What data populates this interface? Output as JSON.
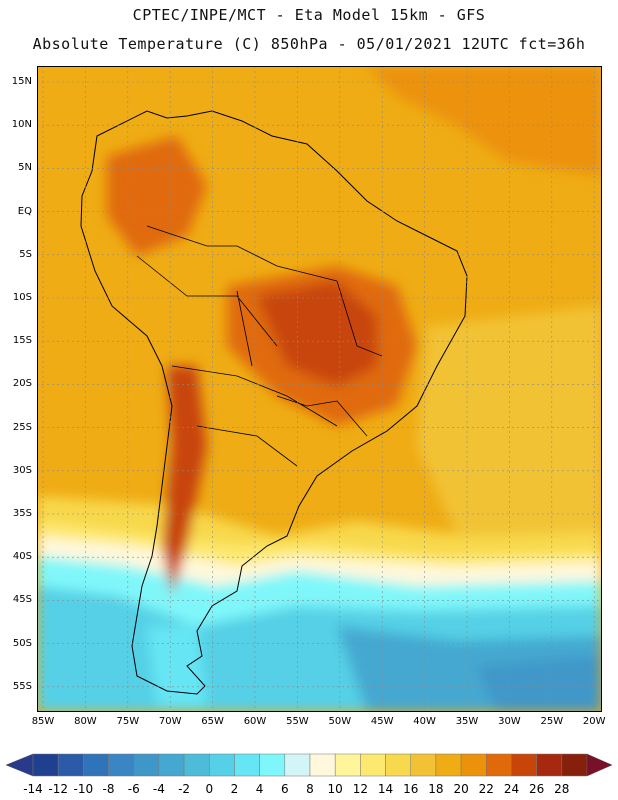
{
  "header": {
    "line1": "CPTEC/INPE/MCT -  Eta Model 15km - GFS",
    "line2": "Absolute Temperature (C) 850hPa - 05/01/2021 12UTC fct=36h"
  },
  "map": {
    "lat_labels": [
      "15N",
      "10N",
      "5N",
      "EQ",
      "5S",
      "10S",
      "15S",
      "20S",
      "25S",
      "30S",
      "35S",
      "40S",
      "45S",
      "50S",
      "55S"
    ],
    "lon_labels": [
      "85W",
      "80W",
      "75W",
      "70W",
      "65W",
      "60W",
      "55W",
      "50W",
      "45W",
      "40W",
      "35W",
      "30W",
      "25W",
      "20W"
    ]
  },
  "colorbar": {
    "ticks": [
      "-14",
      "-12",
      "-10",
      "-8",
      "-6",
      "-4",
      "-2",
      "0",
      "2",
      "4",
      "6",
      "8",
      "10",
      "12",
      "14",
      "16",
      "18",
      "20",
      "22",
      "24",
      "26",
      "28"
    ],
    "colors": [
      "#1f3f8f",
      "#2a5aa8",
      "#2f73b8",
      "#3a86c4",
      "#3f97c8",
      "#45a8d0",
      "#4dbcd8",
      "#55d0e6",
      "#66e6f4",
      "#7ff7fa",
      "#d2f6f7",
      "#fff8dc",
      "#fff59a",
      "#fde970",
      "#f8d84c",
      "#f2c234",
      "#efac14",
      "#ec920a",
      "#e06a0a",
      "#c8450a",
      "#a6290f",
      "#86200c"
    ],
    "under_color": "#2a3a8a",
    "over_color": "#7a0f28"
  }
}
